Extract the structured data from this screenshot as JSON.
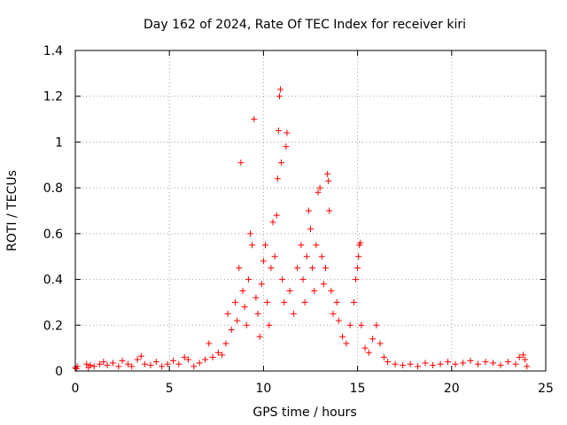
{
  "chart_data": {
    "type": "scatter",
    "title": "Day 162 of 2024, Rate Of TEC Index for receiver kiri",
    "xlabel": "GPS time / hours",
    "ylabel": "ROTI / TECUs",
    "xlim": [
      0,
      25
    ],
    "ylim": [
      0,
      1.4
    ],
    "xticks": [
      0,
      5,
      10,
      15,
      20,
      25
    ],
    "xtick_labels": [
      "0",
      "5",
      "10",
      "15",
      "20",
      "25"
    ],
    "yticks": [
      0,
      0.2,
      0.4,
      0.6,
      0.8,
      1,
      1.2,
      1.4
    ],
    "ytick_labels": [
      "0",
      "0.2",
      "0.4",
      "0.6",
      "0.8",
      "1",
      "1.2",
      "1.4"
    ],
    "grid": true,
    "marker": "+",
    "color": "#ff0000",
    "series": [
      {
        "name": "ROTI",
        "points": [
          [
            0.0,
            0.015
          ],
          [
            0.05,
            0.01
          ],
          [
            0.1,
            0.02
          ],
          [
            0.6,
            0.03
          ],
          [
            0.7,
            0.015
          ],
          [
            0.8,
            0.025
          ],
          [
            1.0,
            0.02
          ],
          [
            1.3,
            0.03
          ],
          [
            1.5,
            0.04
          ],
          [
            1.7,
            0.025
          ],
          [
            2.0,
            0.035
          ],
          [
            2.3,
            0.02
          ],
          [
            2.5,
            0.045
          ],
          [
            2.8,
            0.03
          ],
          [
            3.0,
            0.02
          ],
          [
            3.3,
            0.05
          ],
          [
            3.5,
            0.065
          ],
          [
            3.7,
            0.03
          ],
          [
            4.0,
            0.025
          ],
          [
            4.3,
            0.04
          ],
          [
            4.6,
            0.02
          ],
          [
            4.9,
            0.03
          ],
          [
            5.2,
            0.045
          ],
          [
            5.5,
            0.03
          ],
          [
            5.8,
            0.06
          ],
          [
            6.0,
            0.05
          ],
          [
            6.3,
            0.02
          ],
          [
            6.6,
            0.035
          ],
          [
            6.9,
            0.05
          ],
          [
            7.1,
            0.12
          ],
          [
            7.3,
            0.06
          ],
          [
            7.6,
            0.08
          ],
          [
            7.8,
            0.07
          ],
          [
            8.0,
            0.12
          ],
          [
            8.1,
            0.25
          ],
          [
            8.3,
            0.18
          ],
          [
            8.5,
            0.3
          ],
          [
            8.6,
            0.22
          ],
          [
            8.7,
            0.45
          ],
          [
            8.8,
            0.91
          ],
          [
            8.9,
            0.35
          ],
          [
            9.0,
            0.28
          ],
          [
            9.1,
            0.2
          ],
          [
            9.2,
            0.4
          ],
          [
            9.3,
            0.6
          ],
          [
            9.4,
            0.55
          ],
          [
            9.5,
            1.1
          ],
          [
            9.6,
            0.32
          ],
          [
            9.7,
            0.25
          ],
          [
            9.8,
            0.15
          ],
          [
            9.9,
            0.38
          ],
          [
            10.0,
            0.48
          ],
          [
            10.1,
            0.55
          ],
          [
            10.2,
            0.3
          ],
          [
            10.3,
            0.2
          ],
          [
            10.4,
            0.45
          ],
          [
            10.5,
            0.65
          ],
          [
            10.6,
            0.5
          ],
          [
            10.7,
            0.68
          ],
          [
            10.75,
            0.84
          ],
          [
            10.8,
            1.05
          ],
          [
            10.85,
            1.2
          ],
          [
            10.9,
            1.23
          ],
          [
            10.95,
            0.91
          ],
          [
            11.0,
            0.4
          ],
          [
            11.1,
            0.3
          ],
          [
            11.2,
            0.98
          ],
          [
            11.25,
            1.04
          ],
          [
            11.4,
            0.35
          ],
          [
            11.6,
            0.25
          ],
          [
            11.8,
            0.45
          ],
          [
            12.0,
            0.55
          ],
          [
            12.1,
            0.4
          ],
          [
            12.2,
            0.3
          ],
          [
            12.3,
            0.5
          ],
          [
            12.4,
            0.7
          ],
          [
            12.5,
            0.62
          ],
          [
            12.6,
            0.45
          ],
          [
            12.7,
            0.35
          ],
          [
            12.8,
            0.55
          ],
          [
            12.9,
            0.78
          ],
          [
            13.0,
            0.8
          ],
          [
            13.1,
            0.5
          ],
          [
            13.2,
            0.38
          ],
          [
            13.3,
            0.45
          ],
          [
            13.4,
            0.86
          ],
          [
            13.45,
            0.83
          ],
          [
            13.5,
            0.7
          ],
          [
            13.6,
            0.35
          ],
          [
            13.7,
            0.25
          ],
          [
            13.9,
            0.3
          ],
          [
            14.0,
            0.22
          ],
          [
            14.2,
            0.15
          ],
          [
            14.4,
            0.12
          ],
          [
            14.6,
            0.2
          ],
          [
            14.8,
            0.3
          ],
          [
            14.9,
            0.4
          ],
          [
            15.0,
            0.45
          ],
          [
            15.05,
            0.5
          ],
          [
            15.1,
            0.55
          ],
          [
            15.15,
            0.56
          ],
          [
            15.2,
            0.2
          ],
          [
            15.4,
            0.1
          ],
          [
            15.6,
            0.08
          ],
          [
            15.8,
            0.14
          ],
          [
            16.0,
            0.2
          ],
          [
            16.2,
            0.12
          ],
          [
            16.4,
            0.06
          ],
          [
            16.6,
            0.04
          ],
          [
            17.0,
            0.03
          ],
          [
            17.4,
            0.025
          ],
          [
            17.8,
            0.03
          ],
          [
            18.2,
            0.02
          ],
          [
            18.6,
            0.035
          ],
          [
            19.0,
            0.025
          ],
          [
            19.4,
            0.03
          ],
          [
            19.8,
            0.04
          ],
          [
            20.2,
            0.03
          ],
          [
            20.6,
            0.035
          ],
          [
            21.0,
            0.045
          ],
          [
            21.4,
            0.03
          ],
          [
            21.8,
            0.04
          ],
          [
            22.2,
            0.035
          ],
          [
            22.6,
            0.025
          ],
          [
            23.0,
            0.04
          ],
          [
            23.4,
            0.03
          ],
          [
            23.6,
            0.06
          ],
          [
            23.8,
            0.07
          ],
          [
            23.9,
            0.05
          ],
          [
            24.0,
            0.02
          ]
        ]
      }
    ]
  }
}
